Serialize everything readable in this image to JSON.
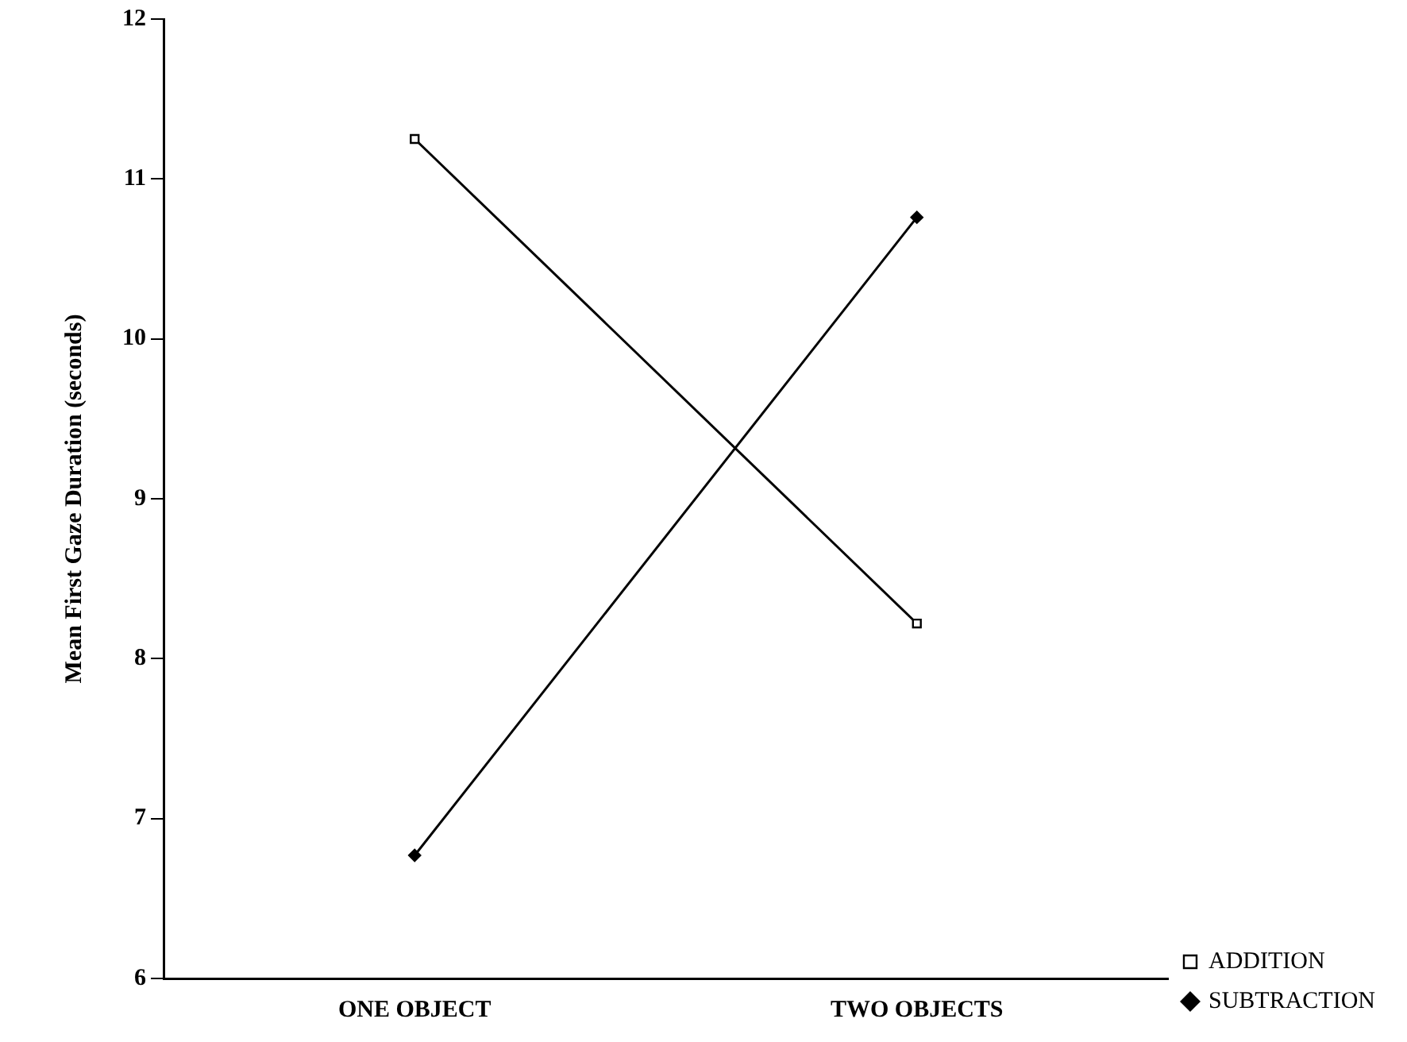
{
  "chart_data": {
    "type": "line",
    "ylabel": "Mean First Gaze Duration (seconds)",
    "categories": [
      "ONE OBJECT",
      "TWO OBJECTS"
    ],
    "series": [
      {
        "name": "ADDITION",
        "color": "#000000",
        "values": [
          11.25,
          8.22
        ],
        "marker": "square"
      },
      {
        "name": "SUBTRACTION",
        "color": "#000000",
        "values": [
          6.77,
          10.76
        ],
        "marker": "diamond"
      }
    ],
    "ylim": [
      6,
      12
    ],
    "yticks": [
      6,
      7,
      8,
      9,
      10,
      11,
      12
    ],
    "grid": false,
    "legend": "right",
    "line_style": "solid"
  }
}
